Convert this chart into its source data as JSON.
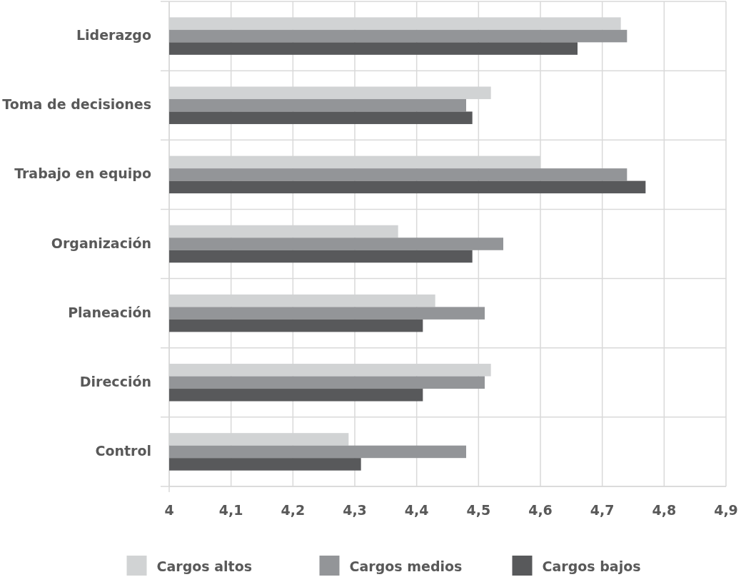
{
  "chart_data": {
    "type": "bar",
    "orientation": "horizontal",
    "categories": [
      "Liderazgo",
      "Toma de decisiones",
      "Trabajo en equipo",
      "Organización",
      "Planeación",
      "Dirección",
      "Control"
    ],
    "series": [
      {
        "name": "Cargos altos",
        "color": "#d1d3d4",
        "values": [
          4.73,
          4.52,
          4.6,
          4.37,
          4.43,
          4.52,
          4.29
        ]
      },
      {
        "name": "Cargos medios",
        "color": "#939598",
        "values": [
          4.74,
          4.48,
          4.74,
          4.54,
          4.51,
          4.51,
          4.48
        ]
      },
      {
        "name": "Cargos bajos",
        "color": "#58595b",
        "values": [
          4.66,
          4.49,
          4.77,
          4.49,
          4.41,
          4.41,
          4.31
        ]
      }
    ],
    "xlim": [
      4,
      4.9
    ],
    "xticks": [
      4,
      {
        "value": 4.1,
        "label": "4,1"
      },
      {
        "value": 4.2,
        "label": "4,2"
      },
      {
        "value": 4.3,
        "label": "4,3"
      },
      {
        "value": 4.4,
        "label": "4,4"
      },
      {
        "value": 4.5,
        "label": "4,5"
      },
      {
        "value": 4.6,
        "label": "4,6"
      },
      {
        "value": 4.7,
        "label": "4,7"
      },
      {
        "value": 4.8,
        "label": "4,8"
      },
      {
        "value": 4.9,
        "label": "4,9"
      }
    ],
    "grid": true,
    "legend": "bottom"
  }
}
